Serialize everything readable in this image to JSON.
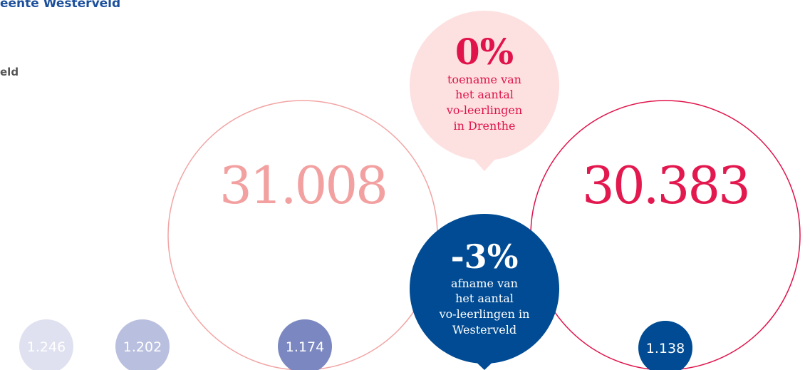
{
  "header": {
    "title": "eente Westerveld",
    "subtitle": "eld"
  },
  "totals": [
    "31.008",
    "30.383"
  ],
  "bubbles": [
    {
      "value": "0%",
      "lines": [
        "toename van",
        "het aantal",
        "vo-leerlingen",
        "in Drenthe"
      ]
    },
    {
      "value": "-3%",
      "lines": [
        "afname van",
        "het aantal",
        "vo-leerlingen in",
        "Westerveld"
      ]
    }
  ],
  "small": [
    "1.246",
    "1.202",
    "1.174",
    "1.138"
  ]
}
